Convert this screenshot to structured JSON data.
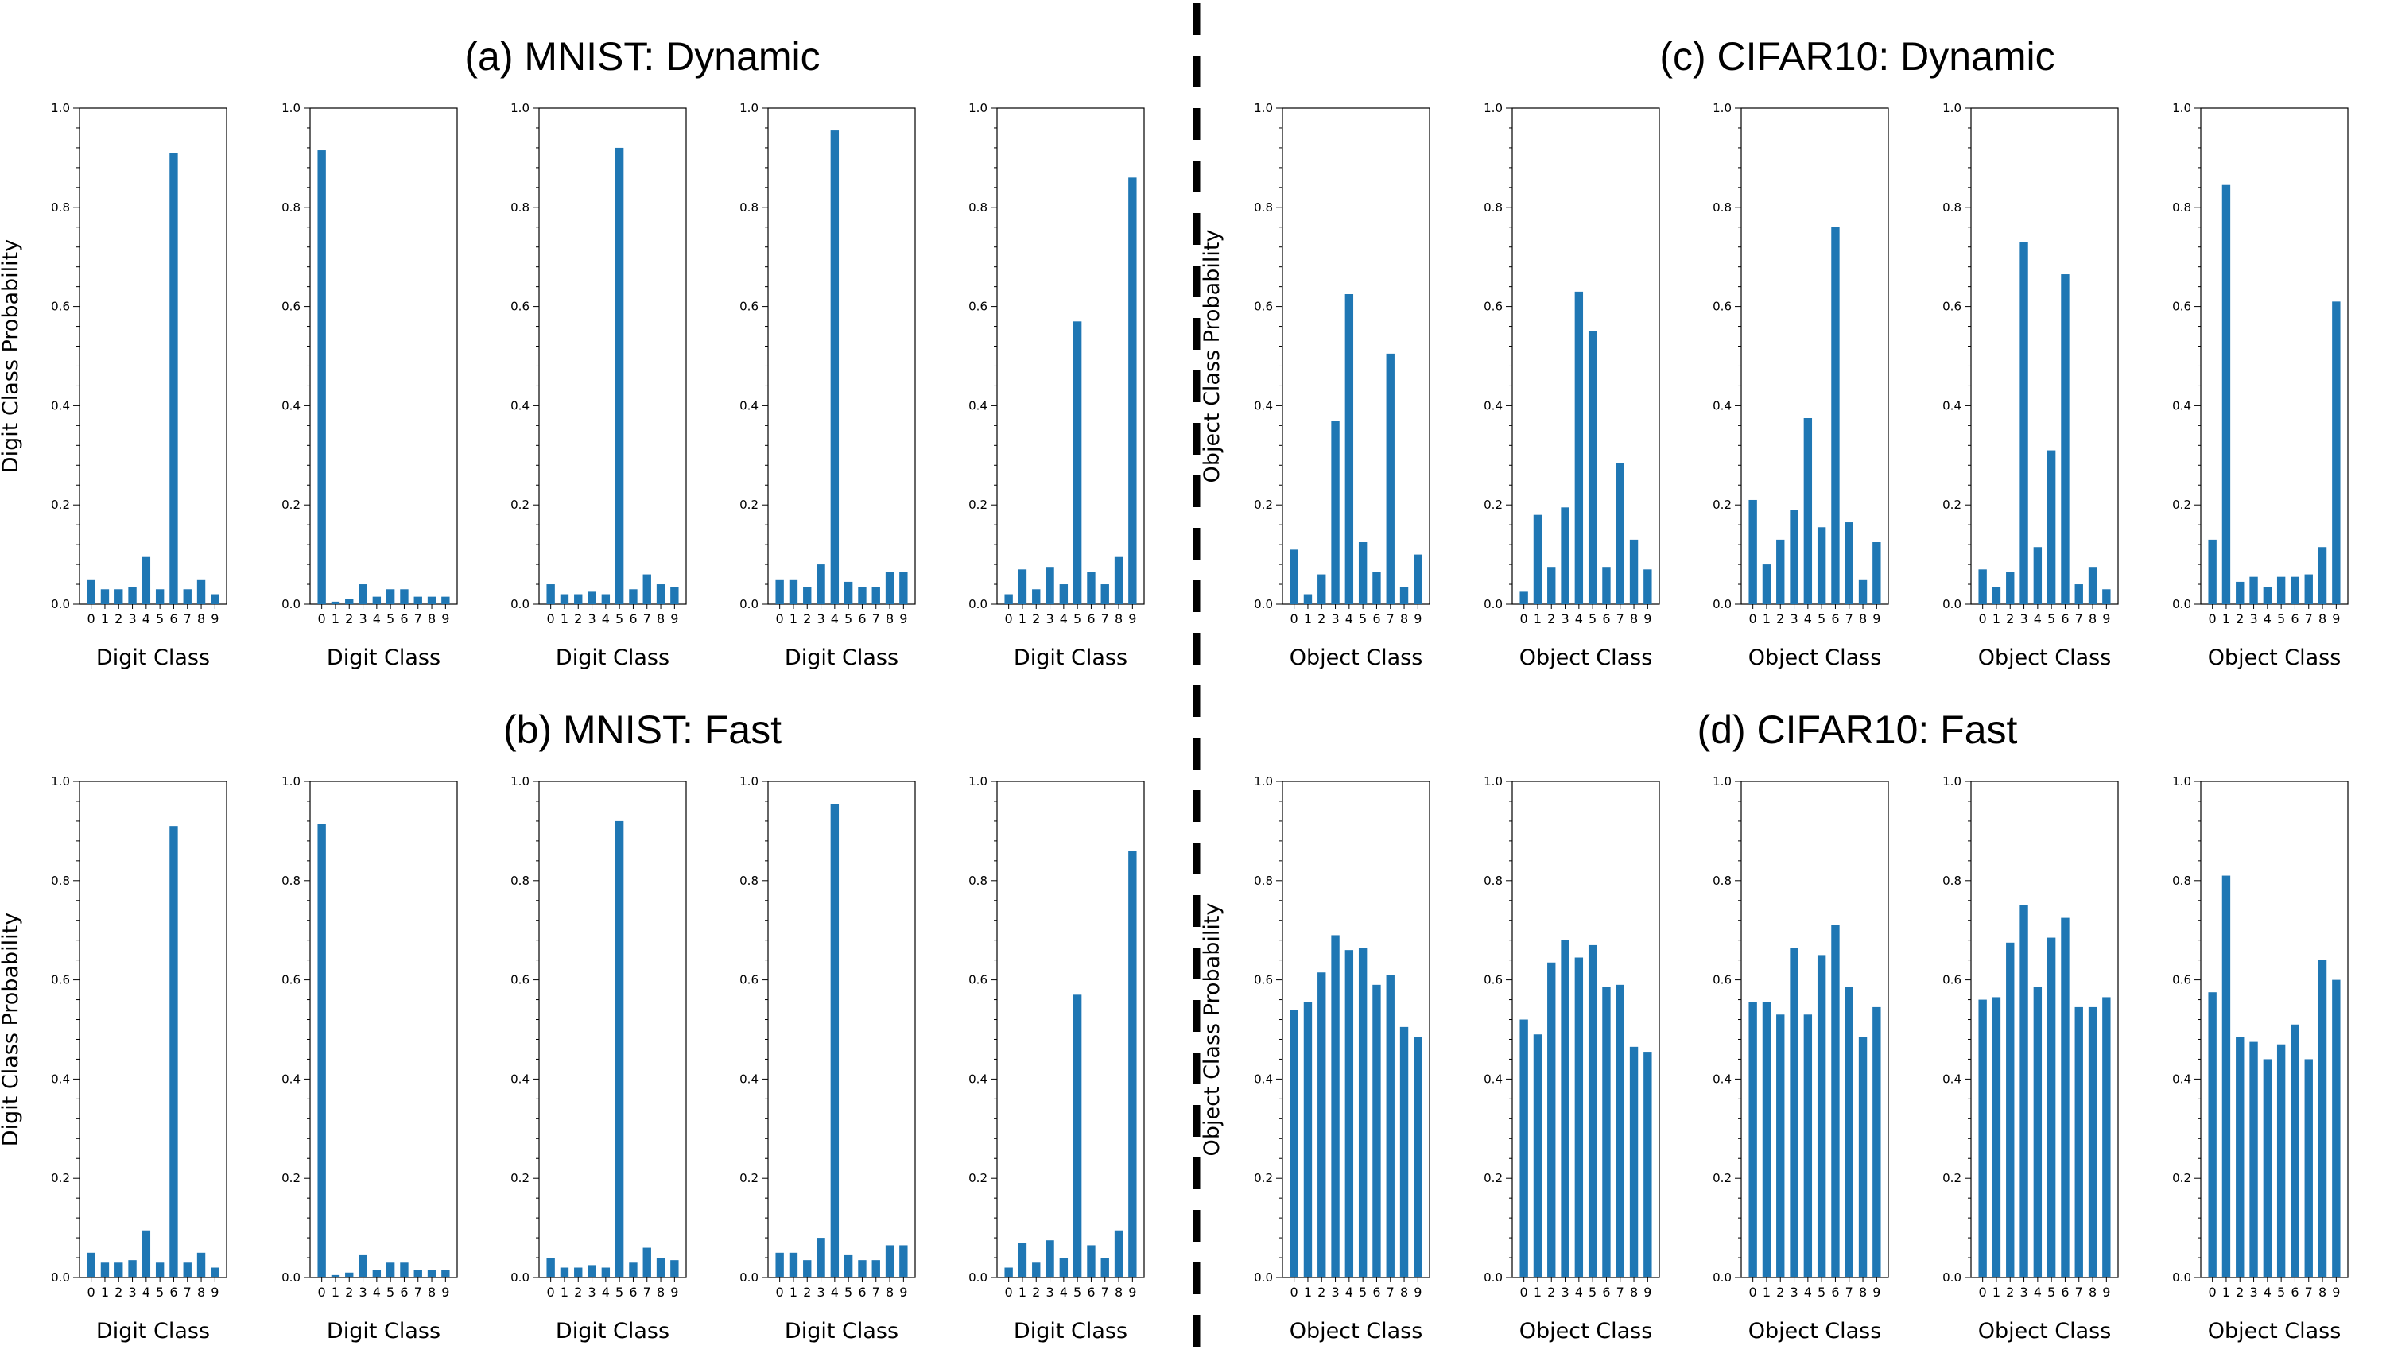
{
  "chart_data": [
    {
      "type": "bar",
      "title": "(a) MNIST: Dynamic",
      "xlabel": "Digit Class",
      "ylabel": "Digit Class Probability",
      "ylim": [
        0,
        1.0
      ],
      "yticks": [
        "0.0",
        "0.2",
        "0.4",
        "0.6",
        "0.8",
        "1.0"
      ],
      "categories": [
        "0",
        "1",
        "2",
        "3",
        "4",
        "5",
        "6",
        "7",
        "8",
        "9"
      ],
      "bar_color": "#1f77b4",
      "subplots": [
        {
          "values": [
            0.05,
            0.03,
            0.03,
            0.035,
            0.095,
            0.03,
            0.91,
            0.03,
            0.05,
            0.02
          ]
        },
        {
          "values": [
            0.915,
            0.005,
            0.01,
            0.04,
            0.015,
            0.03,
            0.03,
            0.015,
            0.015,
            0.015
          ]
        },
        {
          "values": [
            0.04,
            0.02,
            0.02,
            0.025,
            0.02,
            0.92,
            0.03,
            0.06,
            0.04,
            0.035
          ]
        },
        {
          "values": [
            0.05,
            0.05,
            0.035,
            0.08,
            0.955,
            0.045,
            0.035,
            0.035,
            0.065,
            0.065
          ]
        },
        {
          "values": [
            0.02,
            0.07,
            0.03,
            0.075,
            0.04,
            0.57,
            0.065,
            0.04,
            0.095,
            0.86
          ]
        }
      ]
    },
    {
      "type": "bar",
      "title": "(b) MNIST: Fast",
      "xlabel": "Digit Class",
      "ylabel": "Digit Class Probability",
      "ylim": [
        0,
        1.0
      ],
      "yticks": [
        "0.0",
        "0.2",
        "0.4",
        "0.6",
        "0.8",
        "1.0"
      ],
      "categories": [
        "0",
        "1",
        "2",
        "3",
        "4",
        "5",
        "6",
        "7",
        "8",
        "9"
      ],
      "bar_color": "#1f77b4",
      "subplots": [
        {
          "values": [
            0.05,
            0.03,
            0.03,
            0.035,
            0.095,
            0.03,
            0.91,
            0.03,
            0.05,
            0.02
          ]
        },
        {
          "values": [
            0.915,
            0.005,
            0.01,
            0.045,
            0.015,
            0.03,
            0.03,
            0.015,
            0.015,
            0.015
          ]
        },
        {
          "values": [
            0.04,
            0.02,
            0.02,
            0.025,
            0.02,
            0.92,
            0.03,
            0.06,
            0.04,
            0.035
          ]
        },
        {
          "values": [
            0.05,
            0.05,
            0.035,
            0.08,
            0.955,
            0.045,
            0.035,
            0.035,
            0.065,
            0.065
          ]
        },
        {
          "values": [
            0.02,
            0.07,
            0.03,
            0.075,
            0.04,
            0.57,
            0.065,
            0.04,
            0.095,
            0.86
          ]
        }
      ]
    },
    {
      "type": "bar",
      "title": "(c) CIFAR10: Dynamic",
      "xlabel": "Object Class",
      "ylabel": "Object Class Probability",
      "ylim": [
        0,
        1.0
      ],
      "yticks": [
        "0.0",
        "0.2",
        "0.4",
        "0.6",
        "0.8",
        "1.0"
      ],
      "categories": [
        "0",
        "1",
        "2",
        "3",
        "4",
        "5",
        "6",
        "7",
        "8",
        "9"
      ],
      "bar_color": "#1f77b4",
      "subplots": [
        {
          "values": [
            0.11,
            0.02,
            0.06,
            0.37,
            0.625,
            0.125,
            0.065,
            0.505,
            0.035,
            0.1
          ]
        },
        {
          "values": [
            0.025,
            0.18,
            0.075,
            0.195,
            0.63,
            0.55,
            0.075,
            0.285,
            0.13,
            0.07
          ]
        },
        {
          "values": [
            0.21,
            0.08,
            0.13,
            0.19,
            0.375,
            0.155,
            0.76,
            0.165,
            0.05,
            0.125
          ]
        },
        {
          "values": [
            0.07,
            0.035,
            0.065,
            0.73,
            0.115,
            0.31,
            0.665,
            0.04,
            0.075,
            0.03
          ]
        },
        {
          "values": [
            0.13,
            0.845,
            0.045,
            0.055,
            0.035,
            0.055,
            0.055,
            0.06,
            0.115,
            0.61
          ]
        }
      ]
    },
    {
      "type": "bar",
      "title": "(d) CIFAR10: Fast",
      "xlabel": "Object Class",
      "ylabel": "Object Class Probability",
      "ylim": [
        0,
        1.0
      ],
      "yticks": [
        "0.0",
        "0.2",
        "0.4",
        "0.6",
        "0.8",
        "1.0"
      ],
      "categories": [
        "0",
        "1",
        "2",
        "3",
        "4",
        "5",
        "6",
        "7",
        "8",
        "9"
      ],
      "bar_color": "#1f77b4",
      "subplots": [
        {
          "values": [
            0.54,
            0.555,
            0.615,
            0.69,
            0.66,
            0.665,
            0.59,
            0.61,
            0.505,
            0.485
          ]
        },
        {
          "values": [
            0.52,
            0.49,
            0.635,
            0.68,
            0.645,
            0.67,
            0.585,
            0.59,
            0.465,
            0.455
          ]
        },
        {
          "values": [
            0.555,
            0.555,
            0.53,
            0.665,
            0.53,
            0.65,
            0.71,
            0.585,
            0.485,
            0.545
          ]
        },
        {
          "values": [
            0.56,
            0.565,
            0.675,
            0.75,
            0.585,
            0.685,
            0.725,
            0.545,
            0.545,
            0.565
          ]
        },
        {
          "values": [
            0.575,
            0.81,
            0.485,
            0.475,
            0.44,
            0.47,
            0.51,
            0.44,
            0.64,
            0.6
          ]
        }
      ]
    }
  ]
}
